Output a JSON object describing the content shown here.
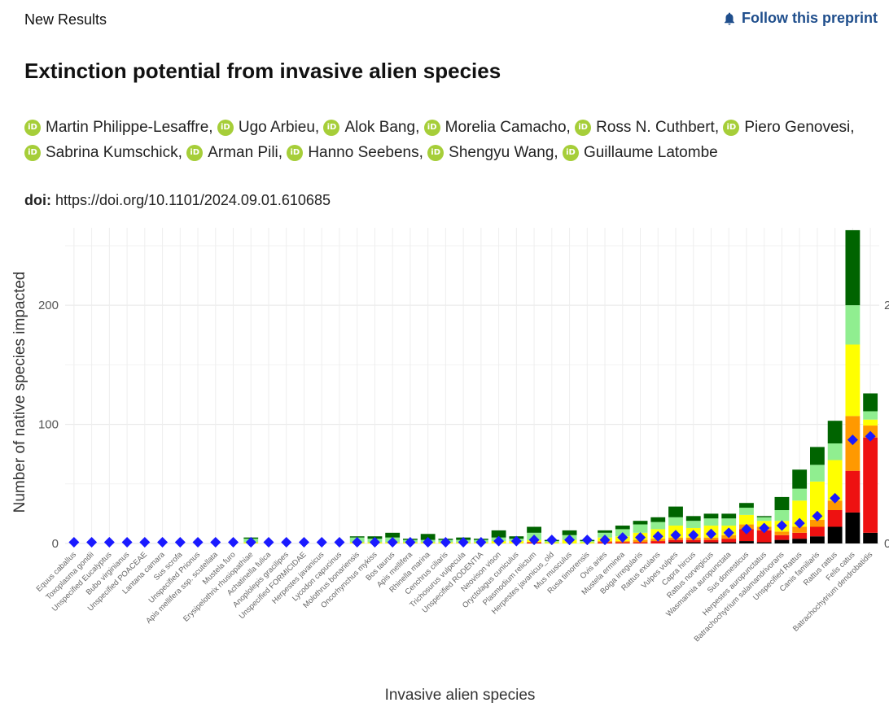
{
  "header": {
    "section": "New Results",
    "follow_label": "Follow this preprint"
  },
  "paper": {
    "title": "Extinction potential from invasive alien species",
    "authors": [
      "Martin Philippe-Lesaffre,",
      "Ugo Arbieu,",
      "Alok Bang,",
      "Morelia Camacho,",
      "Ross N. Cuthbert,",
      "Piero Genovesi,",
      "Sabrina Kumschick,",
      "Arman Pili,",
      "Hanno Seebens,",
      "Shengyu Wang,",
      "Guillaume Latombe"
    ],
    "orcid_badge": "iD",
    "doi_label": "doi:",
    "doi_url": "https://doi.org/10.1101/2024.09.01.610685"
  },
  "chart_data": {
    "type": "bar",
    "stacked": true,
    "xlabel": "Invasive alien species",
    "ylabel": "Number of native species impacted",
    "ylim": [
      0,
      265
    ],
    "yticks": [
      0,
      100,
      200
    ],
    "right_axis_ticks": [
      "0",
      "2"
    ],
    "grid": true,
    "categories": [
      "Equus caballus",
      "Toxoplasma gondii",
      "Unspecified Eucalyptus",
      "Bubo virginianus",
      "Unspecified POACEAE",
      "Lantana camara",
      "Sus scrofa",
      "Unspecified Prionus",
      "Apis mellifera ssp. scutellata",
      "Mustela furo",
      "Erysipelothrix rhusiopathiae",
      "Achatinella fulica",
      "Anoplolepis gracilipes",
      "Unspecified FORMICIDAE",
      "Herpestes javanicus",
      "Lycodon capucinus",
      "Molothrus bonariensis",
      "Oncorhynchus mykiss",
      "Bos taurus",
      "Apis mellifera",
      "Rhinella marina",
      "Cenchrus ciliaris",
      "Trichosurus vulpecula",
      "Unspecified RODENTIA",
      "Neovison vison",
      "Oryctolagus cuniculus",
      "Plasmodium relictum",
      "Herpestes javanicus_old",
      "Mus musculus",
      "Rusa timorensis",
      "Ovis aries",
      "Mustela erminea",
      "Boiga irregularis",
      "Rattus exulans",
      "Vulpes vulpes",
      "Capra hircus",
      "Rattus norvegicus",
      "Wasmannia auropunctata",
      "Sus domesticus",
      "Herpestes auropunctatus",
      "Batrachochytrium salamandrivorans",
      "Unspecified Rattus",
      "Canis familiaris",
      "Rattus rattus",
      "Felis catus",
      "Batrachochytrium dendrobatidis"
    ],
    "series": [
      {
        "color": "#000000",
        "values": [
          0,
          0,
          0,
          0,
          0,
          0,
          0,
          0,
          0,
          0,
          0,
          0,
          0,
          0,
          0,
          0,
          0,
          0,
          0,
          0,
          0,
          0,
          0,
          0,
          0,
          0,
          0,
          0,
          0,
          0,
          0,
          0,
          0,
          0,
          1,
          1,
          1,
          1,
          2,
          1,
          3,
          4,
          6,
          14,
          26,
          9
        ]
      },
      {
        "color": "#ee1111",
        "values": [
          0,
          0,
          0,
          0,
          0,
          0,
          0,
          0,
          0,
          0,
          0,
          0,
          0,
          0,
          0,
          0,
          0,
          0,
          0,
          0,
          0,
          0,
          0,
          0,
          0,
          0,
          1,
          0,
          0,
          0,
          1,
          1,
          1,
          2,
          2,
          2,
          2,
          3,
          10,
          10,
          4,
          5,
          8,
          14,
          35,
          80
        ]
      },
      {
        "color": "#ff9900",
        "values": [
          0,
          0,
          0,
          0,
          0,
          0,
          0,
          0,
          0,
          0,
          0,
          0,
          0,
          0,
          0,
          0,
          0,
          0,
          0,
          0,
          0,
          0,
          0,
          0,
          0,
          0,
          0,
          0,
          0,
          0,
          1,
          1,
          2,
          2,
          2,
          2,
          2,
          3,
          4,
          3,
          3,
          5,
          6,
          8,
          46,
          10
        ]
      },
      {
        "color": "#ffff00",
        "values": [
          0,
          0,
          0,
          0,
          0,
          0,
          0,
          0,
          0,
          0,
          1,
          0,
          0,
          0,
          0,
          0,
          1,
          1,
          1,
          1,
          1,
          1,
          1,
          1,
          2,
          2,
          2,
          1,
          3,
          1,
          3,
          4,
          6,
          8,
          10,
          8,
          10,
          8,
          8,
          5,
          9,
          22,
          32,
          34,
          60,
          5
        ]
      },
      {
        "color": "#90ee90",
        "values": [
          0,
          0,
          0,
          0,
          0,
          0,
          0,
          0,
          0,
          0,
          3,
          0,
          0,
          0,
          0,
          0,
          4,
          3,
          4,
          2,
          2,
          2,
          2,
          2,
          3,
          2,
          6,
          1,
          4,
          1,
          4,
          6,
          7,
          6,
          7,
          6,
          6,
          6,
          6,
          3,
          9,
          10,
          14,
          14,
          33,
          7
        ]
      },
      {
        "color": "#006400",
        "values": [
          0,
          0,
          0,
          0,
          0,
          0,
          0,
          0,
          0,
          0,
          1,
          0,
          0,
          0,
          0,
          0,
          1,
          2,
          4,
          1,
          5,
          1,
          2,
          1,
          6,
          2,
          5,
          1,
          4,
          1,
          2,
          3,
          3,
          4,
          9,
          4,
          4,
          4,
          4,
          1,
          11,
          16,
          15,
          19,
          63,
          15
        ]
      }
    ],
    "marker_series": {
      "shape": "diamond",
      "color": "#1a1aff",
      "values": [
        1,
        1,
        1,
        1,
        1,
        1,
        1,
        1,
        1,
        1,
        1,
        1,
        1,
        1,
        1,
        1,
        1,
        1,
        1,
        1,
        1,
        1,
        1,
        1,
        2,
        2,
        3,
        3,
        3,
        3,
        3,
        5,
        5,
        6,
        7,
        7,
        8,
        9,
        12,
        13,
        15,
        17,
        23,
        38,
        87,
        90
      ]
    }
  }
}
